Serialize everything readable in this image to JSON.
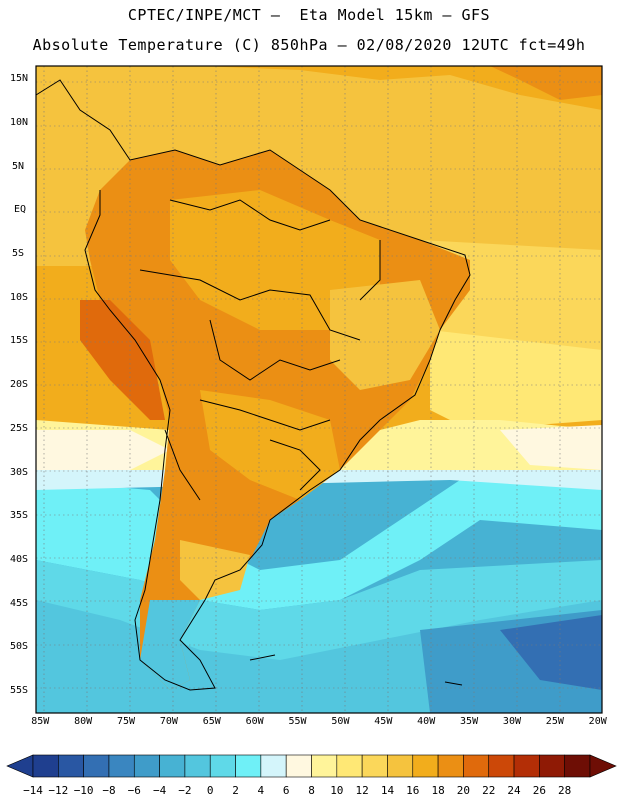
{
  "header": {
    "line1": "CPTEC/INPE/MCT –  Eta Model 15km – GFS",
    "line2": "Absolute Temperature (C) 850hPa – 02/08/2020 12UTC fct=49h"
  },
  "map": {
    "lat_ticks": [
      "15N",
      "10N",
      "5N",
      "EQ",
      "5S",
      "10S",
      "15S",
      "20S",
      "25S",
      "30S",
      "35S",
      "40S",
      "45S",
      "50S",
      "55S"
    ],
    "lon_ticks": [
      "85W",
      "80W",
      "75W",
      "70W",
      "65W",
      "60W",
      "55W",
      "50W",
      "45W",
      "40W",
      "35W",
      "30W",
      "25W",
      "20W"
    ],
    "lat_values": [
      15,
      10,
      5,
      0,
      -5,
      -10,
      -15,
      -20,
      -25,
      -30,
      -35,
      -40,
      -45,
      -50,
      -55
    ],
    "lon_values": [
      -85,
      -80,
      -75,
      -70,
      -65,
      -60,
      -55,
      -50,
      -45,
      -40,
      -35,
      -30,
      -25,
      -20
    ],
    "extent": {
      "lon_min": -85.5,
      "lon_max": -19.5,
      "lat_min": -57.5,
      "lat_max": 16.5
    }
  },
  "colorbar": {
    "labels": [
      "-14",
      "-12",
      "-10",
      "-8",
      "-6",
      "-4",
      "-2",
      "0",
      "2",
      "4",
      "6",
      "8",
      "10",
      "12",
      "14",
      "16",
      "18",
      "20",
      "22",
      "24",
      "26",
      "28"
    ],
    "colors": [
      "#1f3f8f",
      "#2957a3",
      "#336fb3",
      "#3a86c0",
      "#3f9cc9",
      "#47b2d3",
      "#53c6de",
      "#5fd9e8",
      "#6ff0f7",
      "#d4f5fb",
      "#fff8e0",
      "#fff49a",
      "#ffe875",
      "#fbd75a",
      "#f5c33e",
      "#f2ad1c",
      "#eb8f14",
      "#e06a0c",
      "#cc4808",
      "#b32e06",
      "#8f1a05",
      "#6e0e05"
    ]
  }
}
